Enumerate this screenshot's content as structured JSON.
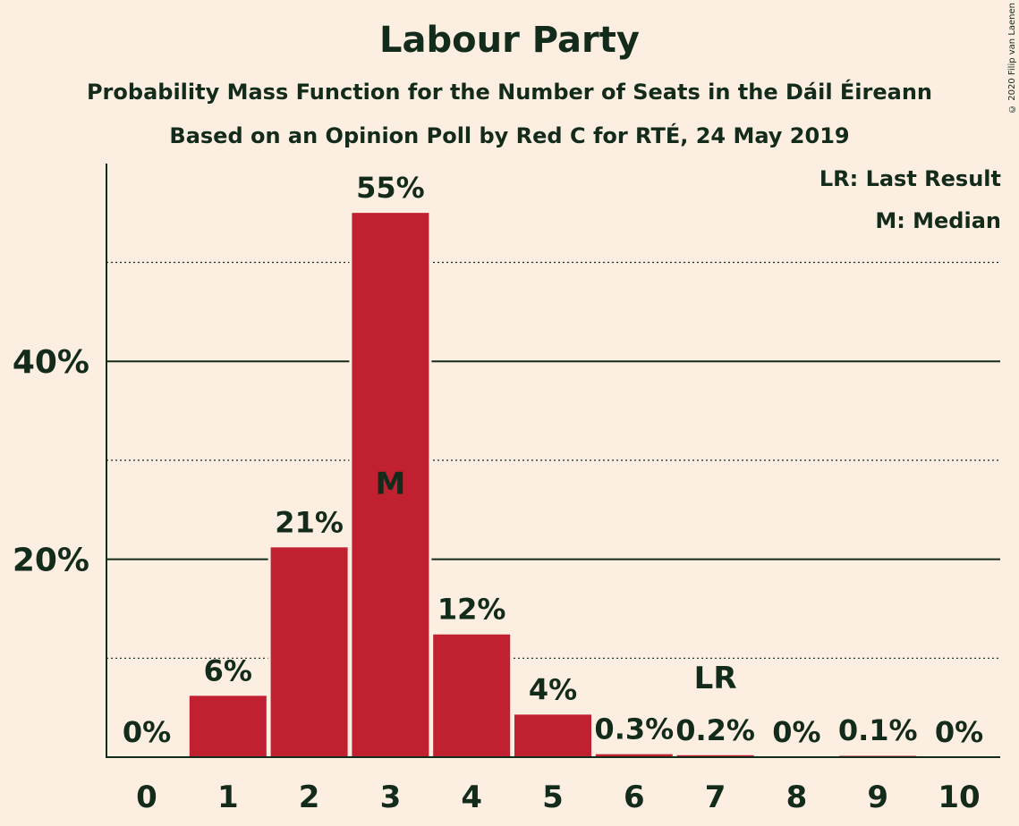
{
  "chart_data": {
    "type": "bar",
    "title": "Labour Party",
    "subtitle": "Probability Mass Function for the Number of Seats in the Dáil Éireann",
    "subtitle2": "Based on an Opinion Poll by Red C for RTÉ, 24 May 2019",
    "categories": [
      "0",
      "1",
      "2",
      "3",
      "4",
      "5",
      "6",
      "7",
      "8",
      "9",
      "10"
    ],
    "values": [
      0,
      6.2,
      21.2,
      55,
      12.4,
      4.3,
      0.3,
      0.2,
      0,
      0.1,
      0
    ],
    "data_labels": [
      "0%",
      "6%",
      "21%",
      "55%",
      "12%",
      "4%",
      "0.3%",
      "0.2%",
      "0%",
      "0.1%",
      "0%"
    ],
    "ylim": [
      0,
      60
    ],
    "yticks": [
      20,
      40
    ],
    "ytick_labels": [
      "20%",
      "40%"
    ],
    "dotted_gridlines": [
      10,
      30,
      50
    ],
    "median_index": 3,
    "median_label": "M",
    "last_result_index": 7,
    "last_result_label": "LR",
    "legend": [
      "LR: Last Result",
      "M: Median"
    ],
    "legend_position": "top-right",
    "bar_color": "#c0202f",
    "background_color": "#fdeee2",
    "text_color": "#122b1b"
  },
  "copyright": "© 2020 Filip van Laenen"
}
